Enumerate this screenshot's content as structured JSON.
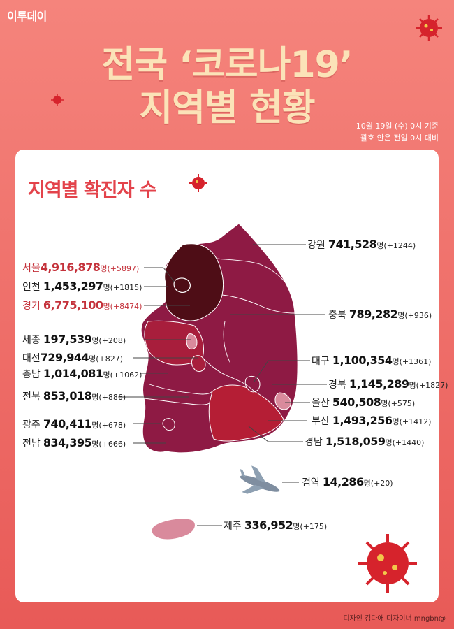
{
  "header": {
    "logo": "이투데이",
    "title_line1": "전국 ‘코로나19’",
    "title_line2": "지역별 현황",
    "basis_line1": "10월 19일 (수) 0시 기준",
    "basis_line2": "괄호 안은 전일 0시 대비"
  },
  "card": {
    "title": "지역별 확진자 수"
  },
  "unit": "명",
  "regions": [
    {
      "name": "강원",
      "count": "741,528",
      "delta": "(+1244)",
      "highlight": false
    },
    {
      "name": "서울",
      "count": "4,916,878",
      "delta": "(+5897)",
      "highlight": true
    },
    {
      "name": "인천",
      "count": "1,453,297",
      "delta": "(+1815)",
      "highlight": false
    },
    {
      "name": "경기",
      "count": "6,775,100",
      "delta": "(+8474)",
      "highlight": true
    },
    {
      "name": "충북",
      "count": "789,282",
      "delta": "(+936)",
      "highlight": false
    },
    {
      "name": "세종",
      "count": "197,539",
      "delta": "(+208)",
      "highlight": false
    },
    {
      "name": "대전",
      "count": "729,944",
      "delta": "(+827)",
      "highlight": false
    },
    {
      "name": "충남",
      "count": "1,014,081",
      "delta": "(+1062)",
      "highlight": false
    },
    {
      "name": "대구",
      "count": "1,100,354",
      "delta": "(+1361)",
      "highlight": false
    },
    {
      "name": "경북",
      "count": "1,145,289",
      "delta": "(+1827)",
      "highlight": false
    },
    {
      "name": "전북",
      "count": "853,018",
      "delta": "(+886)",
      "highlight": false
    },
    {
      "name": "울산",
      "count": "540,508",
      "delta": "(+575)",
      "highlight": false
    },
    {
      "name": "광주",
      "count": "740,411",
      "delta": "(+678)",
      "highlight": false
    },
    {
      "name": "부산",
      "count": "1,493,256",
      "delta": "(+1412)",
      "highlight": false
    },
    {
      "name": "전남",
      "count": "834,395",
      "delta": "(+666)",
      "highlight": false
    },
    {
      "name": "경남",
      "count": "1,518,059",
      "delta": "(+1440)",
      "highlight": false
    },
    {
      "name": "검역",
      "count": "14,286",
      "delta": "(+20)",
      "highlight": false
    },
    {
      "name": "제주",
      "count": "336,952",
      "delta": "(+175)",
      "highlight": false
    }
  ],
  "footer": {
    "credit": "디자인 김다애 디자이너 mngbn@"
  },
  "colors": {
    "map_base": "#8e1a44",
    "seoul_gyeonggi": "#4e0d16",
    "gyeongnam": "#b51e35",
    "chungnam": "#a81e3c",
    "sejong_ulsan_jeju": "#d98a9c",
    "accent_red": "#e3434b"
  },
  "icons": [
    "virus-icon",
    "airplane-icon"
  ]
}
